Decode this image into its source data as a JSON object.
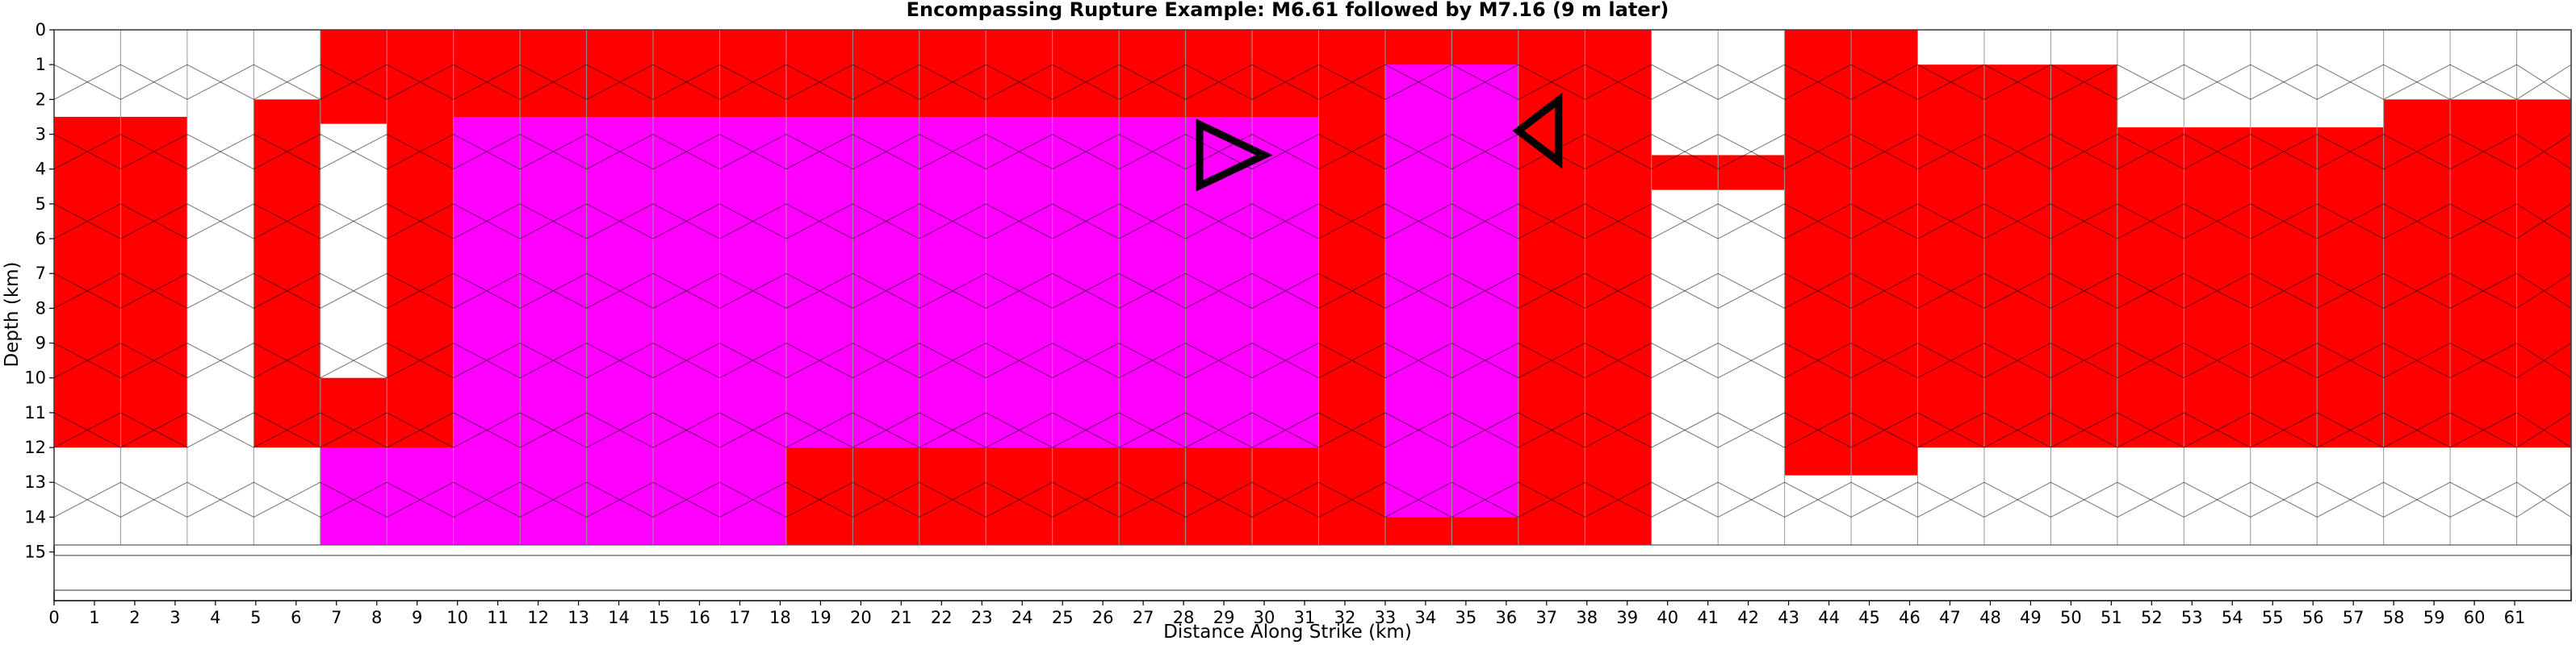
{
  "chart_data": {
    "type": "heatmap",
    "title": "Encompassing Rupture Example: M6.61 followed by M7.16 (9 m later)",
    "xlabel": "Distance Along Strike (km)",
    "ylabel": "Depth (km)",
    "xlim": [
      0,
      62.4
    ],
    "ylim": [
      0,
      16.4
    ],
    "y_inverted": true,
    "grid": true,
    "xticks": [
      0,
      1,
      2,
      3,
      4,
      5,
      6,
      7,
      8,
      9,
      10,
      11,
      12,
      13,
      14,
      15,
      16,
      17,
      18,
      19,
      20,
      21,
      22,
      23,
      24,
      25,
      26,
      27,
      28,
      29,
      30,
      31,
      32,
      33,
      34,
      35,
      36,
      37,
      38,
      39,
      40,
      41,
      42,
      43,
      44,
      45,
      46,
      47,
      48,
      49,
      50,
      51,
      52,
      53,
      54,
      55,
      56,
      57,
      58,
      59,
      60,
      61
    ],
    "yticks": [
      0,
      1,
      2,
      3,
      4,
      5,
      6,
      7,
      8,
      9,
      10,
      11,
      12,
      13,
      14,
      15
    ],
    "fault_area": {
      "x": [
        0,
        62.4
      ],
      "depth": [
        0,
        14.8
      ]
    },
    "lower_panel": {
      "x": [
        0,
        62.4
      ],
      "depth": [
        15.1,
        16.1
      ]
    },
    "colors": {
      "first_rupture": "#ff0000",
      "second_rupture": "#ff00ff",
      "unruptured": "#ffffff",
      "mesh_line": "#999999",
      "rupture_edge": "#000000"
    },
    "column_boundaries": [
      0,
      1.65,
      3.3,
      4.95,
      6.6,
      8.25,
      9.9,
      11.55,
      13.2,
      14.85,
      16.5,
      18.15,
      19.8,
      21.45,
      23.1,
      24.75,
      26.4,
      28.05,
      29.7,
      31.35,
      33.0,
      34.65,
      36.3,
      37.95,
      39.6,
      41.25,
      42.9,
      44.55,
      46.2,
      47.85,
      49.5,
      51.15,
      52.8,
      54.45,
      56.1,
      57.75,
      59.4,
      61.05,
      62.4
    ],
    "regions": [
      {
        "state": "first_rupture",
        "depth": [
          2.5,
          12.0
        ],
        "x": [
          0.0,
          3.3
        ]
      },
      {
        "state": "first_rupture",
        "depth": [
          2.0,
          12.0
        ],
        "x": [
          4.95,
          6.6
        ]
      },
      {
        "state": "first_rupture",
        "depth": [
          0.0,
          2.7
        ],
        "x": [
          6.6,
          8.25
        ]
      },
      {
        "state": "first_rupture",
        "depth": [
          10.0,
          12.5
        ],
        "x": [
          6.6,
          8.25
        ]
      },
      {
        "state": "first_rupture",
        "depth": [
          0.0,
          14.8
        ],
        "x": [
          8.25,
          39.6
        ]
      },
      {
        "state": "first_rupture",
        "depth": [
          3.6,
          4.6
        ],
        "x": [
          39.6,
          42.9
        ]
      },
      {
        "state": "first_rupture",
        "depth": [
          0.0,
          12.8
        ],
        "x": [
          42.9,
          46.2
        ]
      },
      {
        "state": "first_rupture",
        "depth": [
          1.0,
          12.0
        ],
        "x": [
          46.2,
          51.15
        ]
      },
      {
        "state": "first_rupture",
        "depth": [
          2.8,
          12.0
        ],
        "x": [
          51.15,
          57.75
        ]
      },
      {
        "state": "first_rupture",
        "depth": [
          2.0,
          12.0
        ],
        "x": [
          57.75,
          62.4
        ]
      },
      {
        "state": "second_rupture",
        "depth": [
          12.0,
          14.8
        ],
        "x": [
          6.6,
          18.15
        ]
      },
      {
        "state": "second_rupture",
        "depth": [
          2.5,
          12.0
        ],
        "x": [
          9.9,
          31.35
        ]
      },
      {
        "state": "second_rupture",
        "depth": [
          1.0,
          14.0
        ],
        "x": [
          33.0,
          36.3
        ]
      }
    ],
    "markers": [
      {
        "shape": "triangle-right",
        "x": 29.2,
        "depth": 3.6
      },
      {
        "shape": "triangle-left",
        "x": 36.9,
        "depth": 2.9
      }
    ]
  }
}
